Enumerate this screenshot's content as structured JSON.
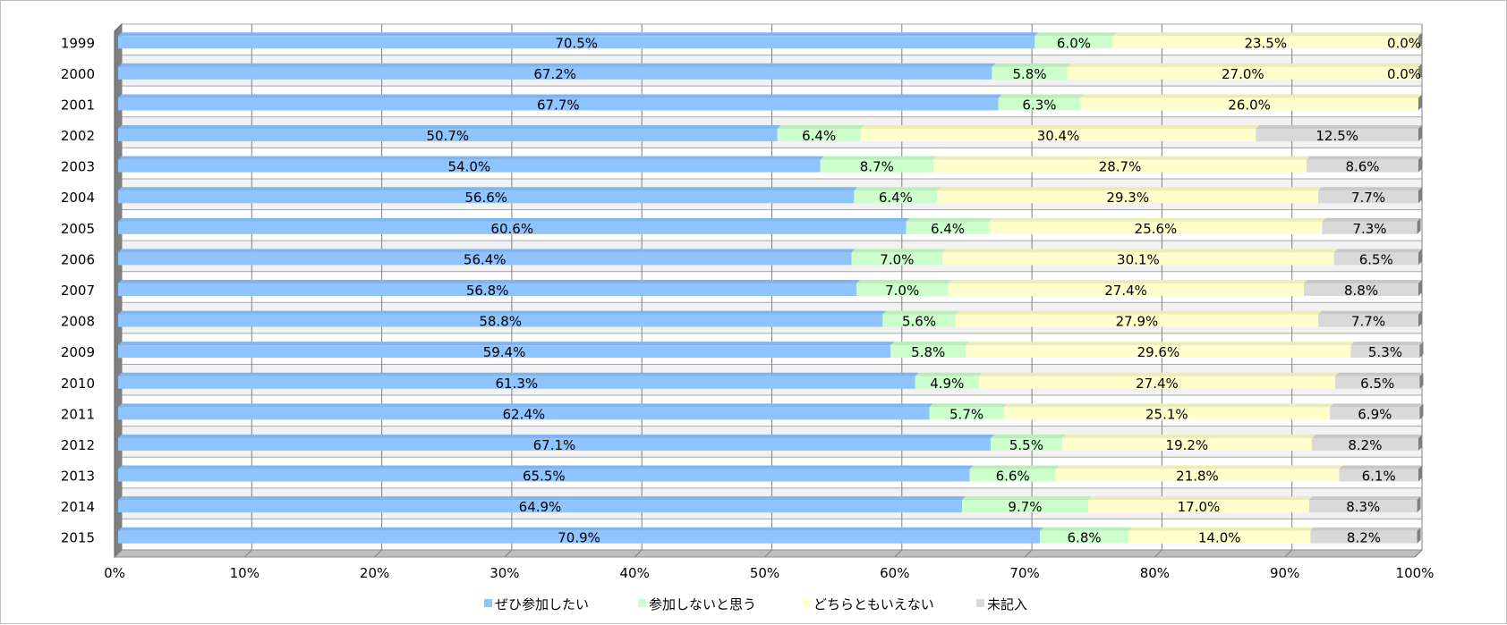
{
  "chart_data": {
    "type": "bar",
    "orientation": "horizontal",
    "stacked": "percent",
    "categories": [
      "1999",
      "2000",
      "2001",
      "2002",
      "2003",
      "2004",
      "2005",
      "2006",
      "2007",
      "2008",
      "2009",
      "2010",
      "2011",
      "2012",
      "2013",
      "2014",
      "2015"
    ],
    "series": [
      {
        "name": "ぜひ参加したい",
        "color": "#8ec4ff",
        "values": [
          70.5,
          67.2,
          67.7,
          50.7,
          54.0,
          56.6,
          60.6,
          56.4,
          56.8,
          58.8,
          59.4,
          61.3,
          62.4,
          67.1,
          65.5,
          64.9,
          70.9
        ],
        "labels": [
          "70.5%",
          "67.2%",
          "67.7%",
          "50.7%",
          "54.0%",
          "56.6%",
          "60.6%",
          "56.4%",
          "56.8%",
          "58.8%",
          "59.4%",
          "61.3%",
          "62.4%",
          "67.1%",
          "65.5%",
          "64.9%",
          "70.9%"
        ]
      },
      {
        "name": "参加しないと思う",
        "color": "#ccffcc",
        "values": [
          6.0,
          5.8,
          6.3,
          6.4,
          8.7,
          6.4,
          6.4,
          7.0,
          7.0,
          5.6,
          5.8,
          4.9,
          5.7,
          5.5,
          6.6,
          9.7,
          6.8
        ],
        "labels": [
          "6.0%",
          "5.8%",
          "6.3%",
          "6.4%",
          "8.7%",
          "6.4%",
          "6.4%",
          "7.0%",
          "7.0%",
          "5.6%",
          "5.8%",
          "4.9%",
          "5.7%",
          "5.5%",
          "6.6%",
          "9.7%",
          "6.8%"
        ]
      },
      {
        "name": "どちらともいえない",
        "color": "#ffffcc",
        "values": [
          23.5,
          27.0,
          26.0,
          30.4,
          28.7,
          29.3,
          25.6,
          30.1,
          27.4,
          27.9,
          29.6,
          27.4,
          25.1,
          19.2,
          21.8,
          17.0,
          14.0
        ],
        "labels": [
          "23.5%",
          "27.0%",
          "26.0%",
          "30.4%",
          "28.7%",
          "29.3%",
          "25.6%",
          "30.1%",
          "27.4%",
          "27.9%",
          "29.6%",
          "27.4%",
          "25.1%",
          "19.2%",
          "21.8%",
          "17.0%",
          "14.0%"
        ]
      },
      {
        "name": "未記入",
        "color": "#d9d9d9",
        "values": [
          0.0,
          0.0,
          0.0,
          12.5,
          8.6,
          7.7,
          7.3,
          6.5,
          8.8,
          7.7,
          5.3,
          6.5,
          6.9,
          8.2,
          6.1,
          8.3,
          8.2
        ],
        "labels": [
          "0.0%",
          "0.0%",
          "",
          "12.5%",
          "8.6%",
          "7.7%",
          "7.3%",
          "6.5%",
          "8.8%",
          "7.7%",
          "5.3%",
          "6.5%",
          "6.9%",
          "8.2%",
          "6.1%",
          "8.3%",
          "8.2%"
        ]
      }
    ],
    "xlim": [
      0,
      100
    ],
    "x_ticks": [
      "0%",
      "10%",
      "20%",
      "30%",
      "40%",
      "50%",
      "60%",
      "70%",
      "80%",
      "90%",
      "100%"
    ],
    "grid": true,
    "legend": "bottom",
    "title": "",
    "xlabel": "",
    "ylabel": ""
  }
}
